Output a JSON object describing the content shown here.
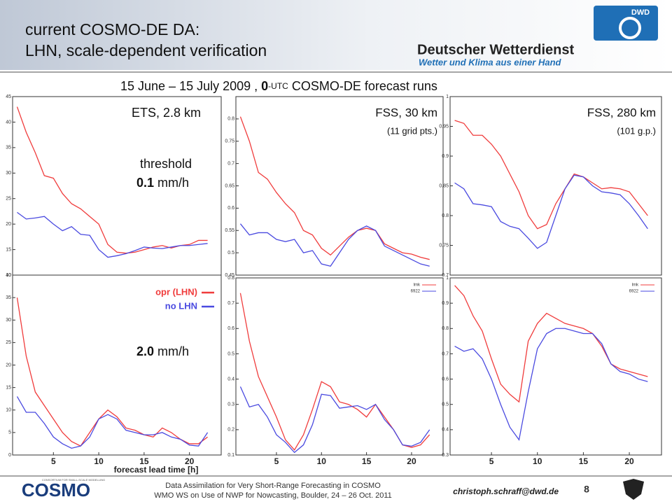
{
  "header": {
    "title_lines": [
      "current COSMO-DE DA:",
      "LHN,  scale-dependent verification"
    ],
    "subheading": [
      "15 June  –  15 July 2009  ,  ",
      "0",
      "-UTC",
      " COSMO-DE forecast runs"
    ],
    "logo_abbr": "DWD",
    "logo_name": "Deutscher Wetterdienst",
    "logo_slogan": "Wetter und Klima aus einer Hand"
  },
  "footer": {
    "logo": "COSMO",
    "logo_small": "CONSORTIUM FOR SMALL-SCALE MODELLING",
    "line1": "Data Assimilation for Very Short-Range Forecasting in COSMO",
    "line2": "WMO WS on Use of NWP for Nowcasting, Boulder, 24 – 26 Oct. 2011",
    "email": "christoph.schraff@dwd.de",
    "page": "8"
  },
  "chart_data": [
    {
      "type": "line",
      "title": "ETS, 2.8 km",
      "annotations": [
        "threshold",
        "0.1",
        "mm/h"
      ],
      "x": [
        1,
        2,
        3,
        4,
        5,
        6,
        7,
        8,
        9,
        10,
        11,
        12,
        13,
        14,
        15,
        16,
        17,
        18,
        19,
        20,
        21,
        22
      ],
      "xlim": [
        0.5,
        23.5
      ],
      "ylim": [
        10,
        45
      ],
      "yticks": [
        10,
        15,
        20,
        25,
        30,
        35,
        40,
        45
      ],
      "series": [
        {
          "color": "#f03c3c",
          "values": [
            43,
            38,
            34,
            29.5,
            29,
            26,
            24,
            23,
            21.5,
            20,
            16,
            14.5,
            14.3,
            14.5,
            15,
            15.5,
            15.8,
            15.3,
            15.8,
            16,
            16.8,
            16.8
          ]
        },
        {
          "color": "#4a4ae0",
          "values": [
            22.3,
            21,
            21.2,
            21.5,
            20,
            18.7,
            19.5,
            18,
            17.8,
            15,
            13.5,
            13.8,
            14.2,
            14.8,
            15.5,
            15.3,
            15.2,
            15.5,
            15.8,
            15.8,
            16,
            16.2
          ]
        }
      ]
    },
    {
      "type": "line",
      "title": "FSS, 30 km",
      "subtitle": "(11 grid pts.)",
      "x": [
        1,
        2,
        3,
        4,
        5,
        6,
        7,
        8,
        9,
        10,
        11,
        12,
        13,
        14,
        15,
        16,
        17,
        18,
        19,
        20,
        21,
        22
      ],
      "xlim": [
        0.5,
        23.5
      ],
      "ylim": [
        0.45,
        0.85
      ],
      "yticks": [
        0.45,
        0.5,
        0.55,
        0.6,
        0.65,
        0.7,
        0.75,
        0.8
      ],
      "series": [
        {
          "color": "#f03c3c",
          "values": [
            0.805,
            0.75,
            0.68,
            0.665,
            0.635,
            0.61,
            0.59,
            0.55,
            0.54,
            0.51,
            0.495,
            0.515,
            0.535,
            0.55,
            0.555,
            0.55,
            0.52,
            0.51,
            0.5,
            0.497,
            0.49,
            0.485
          ]
        },
        {
          "color": "#4a4ae0",
          "values": [
            0.565,
            0.54,
            0.545,
            0.545,
            0.53,
            0.525,
            0.53,
            0.5,
            0.505,
            0.475,
            0.47,
            0.5,
            0.53,
            0.55,
            0.56,
            0.55,
            0.515,
            0.505,
            0.495,
            0.485,
            0.475,
            0.47
          ]
        }
      ]
    },
    {
      "type": "line",
      "title": "FSS, 280 km",
      "subtitle": "(101 g.p.)",
      "x": [
        1,
        2,
        3,
        4,
        5,
        6,
        7,
        8,
        9,
        10,
        11,
        12,
        13,
        14,
        15,
        16,
        17,
        18,
        19,
        20,
        21,
        22
      ],
      "xlim": [
        0.5,
        23.5
      ],
      "ylim": [
        0.7,
        1
      ],
      "yticks": [
        0.7,
        0.75,
        0.8,
        0.85,
        0.9,
        0.95,
        1
      ],
      "series": [
        {
          "color": "#f03c3c",
          "values": [
            0.96,
            0.955,
            0.935,
            0.935,
            0.92,
            0.9,
            0.87,
            0.84,
            0.8,
            0.778,
            0.785,
            0.82,
            0.845,
            0.87,
            0.865,
            0.855,
            0.845,
            0.847,
            0.845,
            0.84,
            0.82,
            0.8
          ]
        },
        {
          "color": "#4a4ae0",
          "values": [
            0.855,
            0.845,
            0.82,
            0.818,
            0.815,
            0.79,
            0.782,
            0.778,
            0.762,
            0.745,
            0.755,
            0.8,
            0.845,
            0.868,
            0.865,
            0.85,
            0.84,
            0.838,
            0.835,
            0.82,
            0.8,
            0.778
          ]
        }
      ]
    },
    {
      "type": "line",
      "annotations": [
        "2.0",
        "mm/h"
      ],
      "x_label": "forecast lead time [h]",
      "x": [
        1,
        2,
        3,
        4,
        5,
        6,
        7,
        8,
        9,
        10,
        11,
        12,
        13,
        14,
        15,
        16,
        17,
        18,
        19,
        20,
        21,
        22
      ],
      "xlim": [
        0.5,
        23.5
      ],
      "xticks": [
        5,
        10,
        15,
        20
      ],
      "ylim": [
        0,
        40
      ],
      "yticks": [
        0,
        5,
        10,
        15,
        20,
        25,
        30,
        35,
        40
      ],
      "legend": "top-right",
      "series": [
        {
          "name": "opr (LHN)",
          "color": "#f03c3c",
          "values": [
            35,
            22,
            14,
            11,
            8,
            5,
            3,
            2,
            5,
            8,
            10,
            8.5,
            6,
            5.5,
            4.5,
            4,
            6,
            5,
            3.5,
            2.5,
            2.5,
            4
          ]
        },
        {
          "name": "no LHN",
          "color": "#4a4ae0",
          "values": [
            13,
            9.5,
            9.5,
            7,
            4,
            2.5,
            1.5,
            2,
            4,
            8,
            9,
            8,
            5.5,
            5,
            4.5,
            4.5,
            5,
            4,
            3.5,
            2.2,
            2,
            5
          ]
        }
      ]
    },
    {
      "type": "line",
      "x": [
        1,
        2,
        3,
        4,
        5,
        6,
        7,
        8,
        9,
        10,
        11,
        12,
        13,
        14,
        15,
        16,
        17,
        18,
        19,
        20,
        21,
        22
      ],
      "xlim": [
        0.5,
        23.5
      ],
      "xticks": [
        5,
        10,
        15,
        20
      ],
      "ylim": [
        0.1,
        0.8
      ],
      "yticks": [
        0.1,
        0.2,
        0.3,
        0.4,
        0.5,
        0.6,
        0.7,
        0.8
      ],
      "legend": "top-right",
      "series": [
        {
          "name": "lmk",
          "color": "#f03c3c",
          "values": [
            0.74,
            0.55,
            0.41,
            0.33,
            0.25,
            0.16,
            0.12,
            0.18,
            0.28,
            0.39,
            0.37,
            0.31,
            0.3,
            0.28,
            0.25,
            0.3,
            0.25,
            0.2,
            0.14,
            0.13,
            0.14,
            0.18
          ]
        },
        {
          "name": "6922",
          "color": "#4a4ae0",
          "values": [
            0.37,
            0.29,
            0.3,
            0.25,
            0.18,
            0.15,
            0.11,
            0.14,
            0.22,
            0.34,
            0.335,
            0.285,
            0.29,
            0.295,
            0.28,
            0.3,
            0.24,
            0.2,
            0.14,
            0.135,
            0.15,
            0.2
          ]
        }
      ]
    },
    {
      "type": "line",
      "x": [
        1,
        2,
        3,
        4,
        5,
        6,
        7,
        8,
        9,
        10,
        11,
        12,
        13,
        14,
        15,
        16,
        17,
        18,
        19,
        20,
        21,
        22
      ],
      "xlim": [
        0.5,
        23.5
      ],
      "xticks": [
        5,
        10,
        15,
        20
      ],
      "ylim": [
        0.3,
        1
      ],
      "yticks": [
        0.3,
        0.4,
        0.5,
        0.6,
        0.7,
        0.8,
        0.9,
        1
      ],
      "legend": "top-right",
      "series": [
        {
          "name": "lmk",
          "color": "#f03c3c",
          "values": [
            0.97,
            0.93,
            0.85,
            0.79,
            0.68,
            0.58,
            0.54,
            0.51,
            0.75,
            0.82,
            0.86,
            0.84,
            0.82,
            0.81,
            0.8,
            0.78,
            0.73,
            0.66,
            0.64,
            0.63,
            0.62,
            0.61
          ]
        },
        {
          "name": "6922",
          "color": "#4a4ae0",
          "values": [
            0.73,
            0.71,
            0.72,
            0.68,
            0.6,
            0.5,
            0.41,
            0.36,
            0.55,
            0.72,
            0.78,
            0.8,
            0.8,
            0.79,
            0.78,
            0.78,
            0.74,
            0.66,
            0.63,
            0.62,
            0.6,
            0.59
          ]
        }
      ]
    }
  ]
}
